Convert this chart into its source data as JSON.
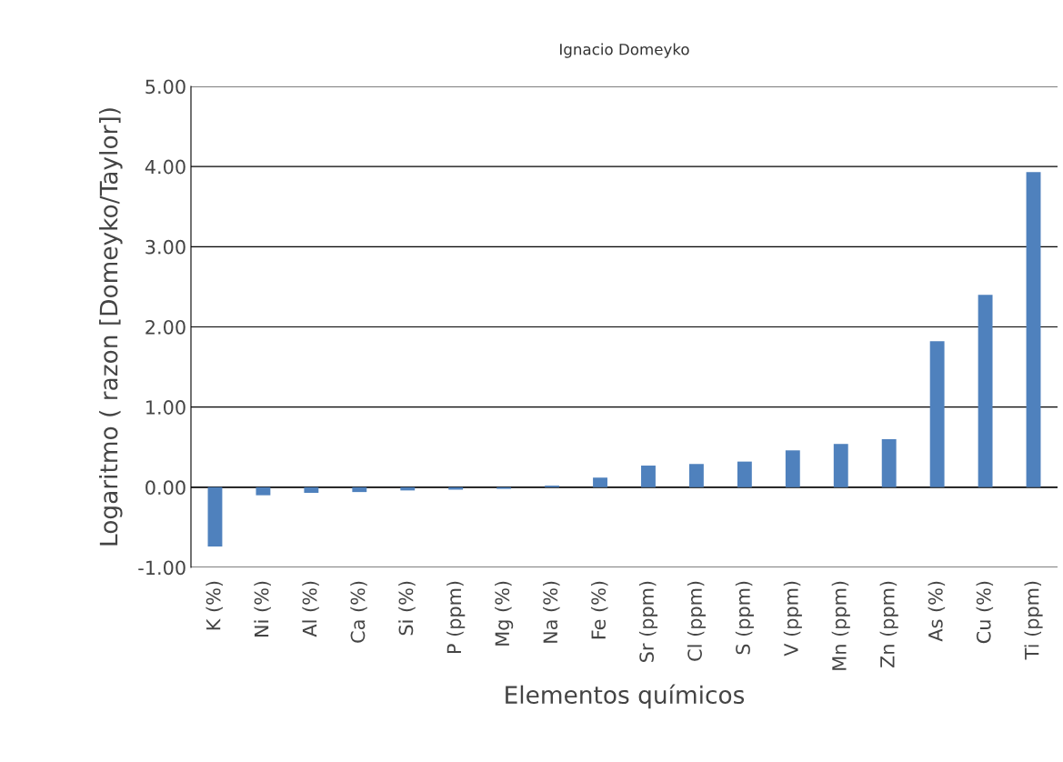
{
  "chart_data": {
    "type": "bar",
    "title": "Ignacio Domeyko",
    "xlabel": "Elementos químicos",
    "ylabel": "Logaritmo ( razon [Domeyko/Taylor])",
    "categories": [
      "K (%)",
      "Ni (%)",
      "Al (%)",
      "Ca (%)",
      "Si (%)",
      "P (ppm)",
      "Mg (%)",
      "Na (%)",
      "Fe (%)",
      "Sr (ppm)",
      "Cl (ppm)",
      "S (ppm)",
      "V (ppm)",
      "Mn (ppm)",
      "Zn (ppm)",
      "As (%)",
      "Cu (%)",
      "Ti (ppm)"
    ],
    "values": [
      -0.74,
      -0.1,
      -0.07,
      -0.06,
      -0.04,
      -0.03,
      -0.02,
      0.02,
      0.12,
      0.27,
      0.29,
      0.32,
      0.46,
      0.54,
      0.6,
      1.82,
      2.4,
      3.93
    ],
    "color": "#4f81bd",
    "ylim": [
      -1,
      5
    ],
    "yticks": [
      {
        "value": -1,
        "label": "-1.00"
      },
      {
        "value": 0,
        "label": "0.00"
      },
      {
        "value": 1,
        "label": "1.00"
      },
      {
        "value": 2,
        "label": "2.00"
      },
      {
        "value": 3,
        "label": "3.00"
      },
      {
        "value": 4,
        "label": "4.00"
      },
      {
        "value": 5,
        "label": "5.00"
      }
    ],
    "grid": "y"
  }
}
